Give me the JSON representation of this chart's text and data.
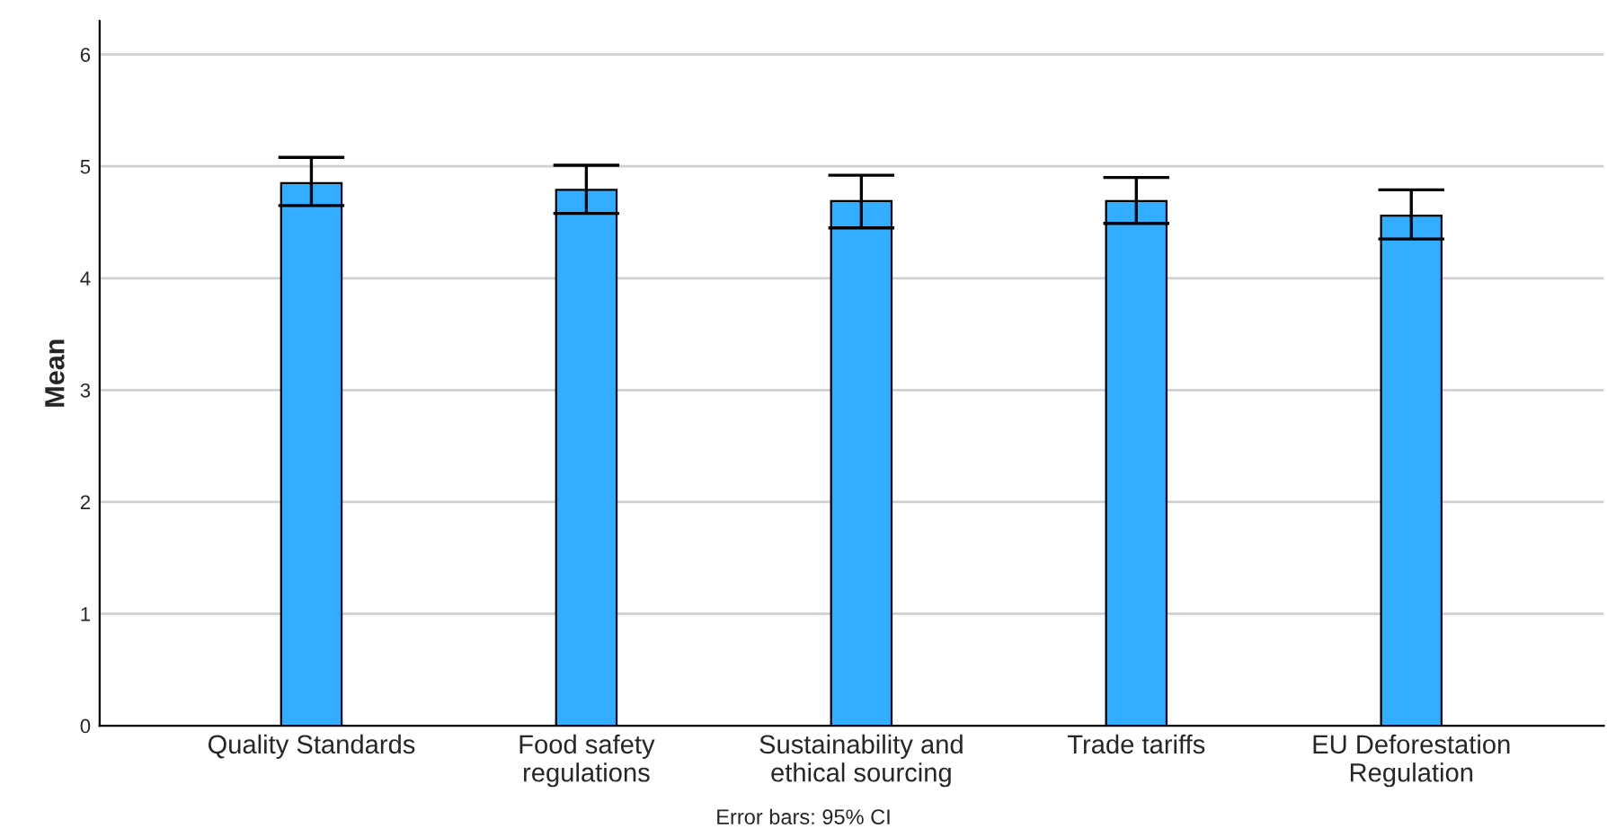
{
  "chart_data": {
    "type": "bar",
    "ylabel": "Mean",
    "categories": [
      "Quality Standards",
      "Food safety\nregulations",
      "Sustainability and\nethical sourcing",
      "Trade tariffs",
      "EU Deforestation\nRegulation"
    ],
    "values": [
      4.85,
      4.79,
      4.69,
      4.69,
      4.56
    ],
    "errors": [
      [
        4.65,
        5.08
      ],
      [
        4.58,
        5.01
      ],
      [
        4.45,
        4.92
      ],
      [
        4.49,
        4.9
      ],
      [
        4.35,
        4.79
      ]
    ],
    "color": "#33adff",
    "ylim": [
      0,
      6.3
    ],
    "yticks": [
      0,
      1,
      2,
      3,
      4,
      5,
      6
    ],
    "grid": "y",
    "annotations": [
      "Error bars: 95% CI"
    ]
  }
}
